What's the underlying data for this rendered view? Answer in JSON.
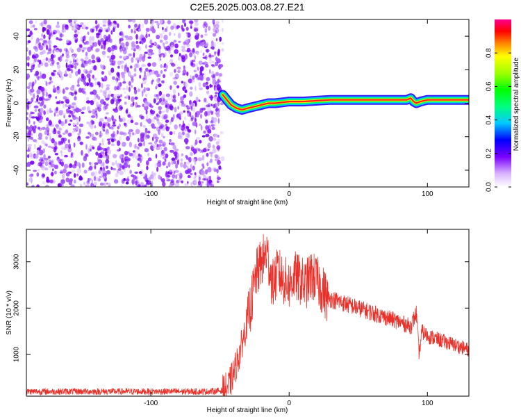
{
  "title": "C2E5.2025.003.08.27.E21",
  "colors": {
    "snr_line": "#e8312a",
    "axis": "#000000",
    "speckle": "#7a00ff",
    "ridge": "#ff2020"
  },
  "chart_data": [
    {
      "type": "heatmap",
      "xlabel": "Height of straight line (km)",
      "ylabel": "Frequency (Hz)",
      "xlim": [
        -190,
        130
      ],
      "ylim": [
        -50,
        50
      ],
      "xticks": [
        -100,
        0,
        100
      ],
      "yticks": [
        -40,
        -20,
        0,
        20,
        40
      ],
      "noise_region": {
        "x": [
          -190,
          -48
        ],
        "description_value": "dense low-amplitude speckle"
      },
      "ridge": {
        "x": [
          -48,
          -45,
          -42,
          -38,
          -34,
          -30,
          -25,
          -20,
          -15,
          -10,
          -5,
          0,
          5,
          10,
          20,
          30,
          50,
          70,
          85,
          88,
          90,
          92,
          95,
          100,
          110,
          130
        ],
        "y": [
          5,
          2,
          -1,
          -3,
          -4,
          -3,
          -2,
          -1,
          0,
          0,
          0.5,
          1,
          1,
          1,
          1.5,
          2,
          2,
          2,
          2,
          3,
          1,
          0,
          1,
          2,
          2,
          2
        ]
      },
      "colorbar": {
        "label": "Normalized spectral amplitude",
        "ticks": [
          0.0,
          0.2,
          0.4,
          0.6,
          0.8
        ],
        "range": [
          0,
          1
        ]
      }
    },
    {
      "type": "line",
      "xlabel": "Height of straight line (km)",
      "ylabel": "SNR (10 * v/v)",
      "xlim": [
        -190,
        130
      ],
      "ylim": [
        100,
        3700
      ],
      "xticks": [
        -100,
        0,
        100
      ],
      "yticks": [
        1000,
        2000,
        3000
      ],
      "series": [
        {
          "x": [
            -190,
            -150,
            -100,
            -60,
            -48,
            -44,
            -40,
            -36,
            -32,
            -28,
            -24,
            -20,
            -16,
            -12,
            -8,
            -4,
            0,
            4,
            8,
            12,
            16,
            20,
            24,
            28,
            30,
            40,
            50,
            60,
            70,
            80,
            88,
            92,
            94,
            96,
            100,
            110,
            120,
            130
          ],
          "values": [
            200,
            200,
            200,
            200,
            220,
            300,
            600,
            1000,
            1500,
            2000,
            2700,
            3000,
            3200,
            2500,
            2800,
            2600,
            2500,
            2700,
            2600,
            2500,
            2700,
            2600,
            2400,
            2200,
            2200,
            2100,
            2000,
            1900,
            1800,
            1700,
            1600,
            1900,
            1000,
            1500,
            1400,
            1300,
            1200,
            1100
          ]
        }
      ]
    }
  ]
}
